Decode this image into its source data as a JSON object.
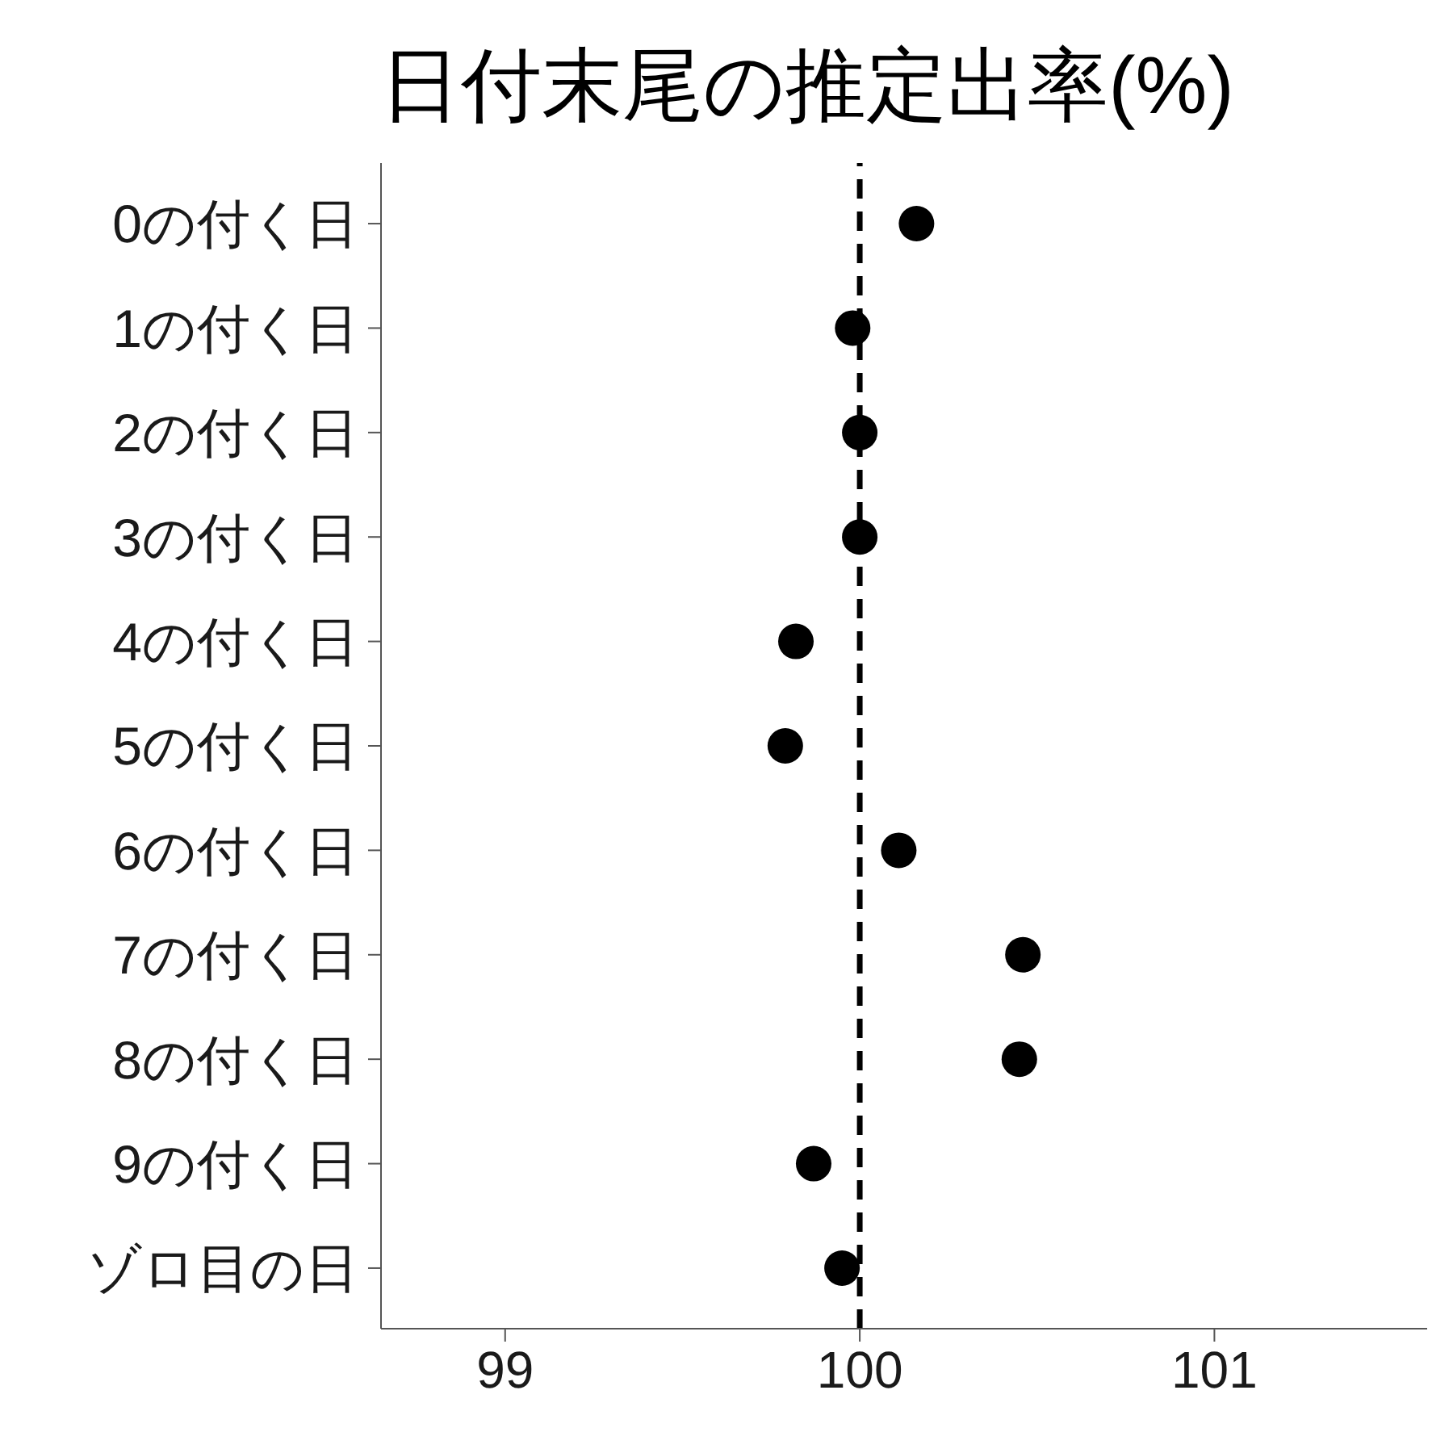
{
  "chart_data": {
    "type": "scatter",
    "title": "日付末尾の推定出率(%)",
    "orientation": "horizontal",
    "categories": [
      "0の付く日",
      "1の付く日",
      "2の付く日",
      "3の付く日",
      "4の付く日",
      "5の付く日",
      "6の付く日",
      "7の付く日",
      "8の付く日",
      "9の付く日",
      "ゾロ目の日"
    ],
    "series": [
      {
        "color": "#000000",
        "values": [
          100.16,
          99.98,
          100.0,
          100.0,
          99.82,
          99.79,
          100.11,
          100.46,
          100.45,
          99.87,
          99.95
        ]
      }
    ],
    "xlim": [
      98.65,
      101.6
    ],
    "xticks": [
      99,
      100,
      101
    ],
    "ref_lines": [
      {
        "axis": "x",
        "value": 100,
        "color": "#000000",
        "line_style": "dashed"
      }
    ],
    "marker": "circle"
  }
}
